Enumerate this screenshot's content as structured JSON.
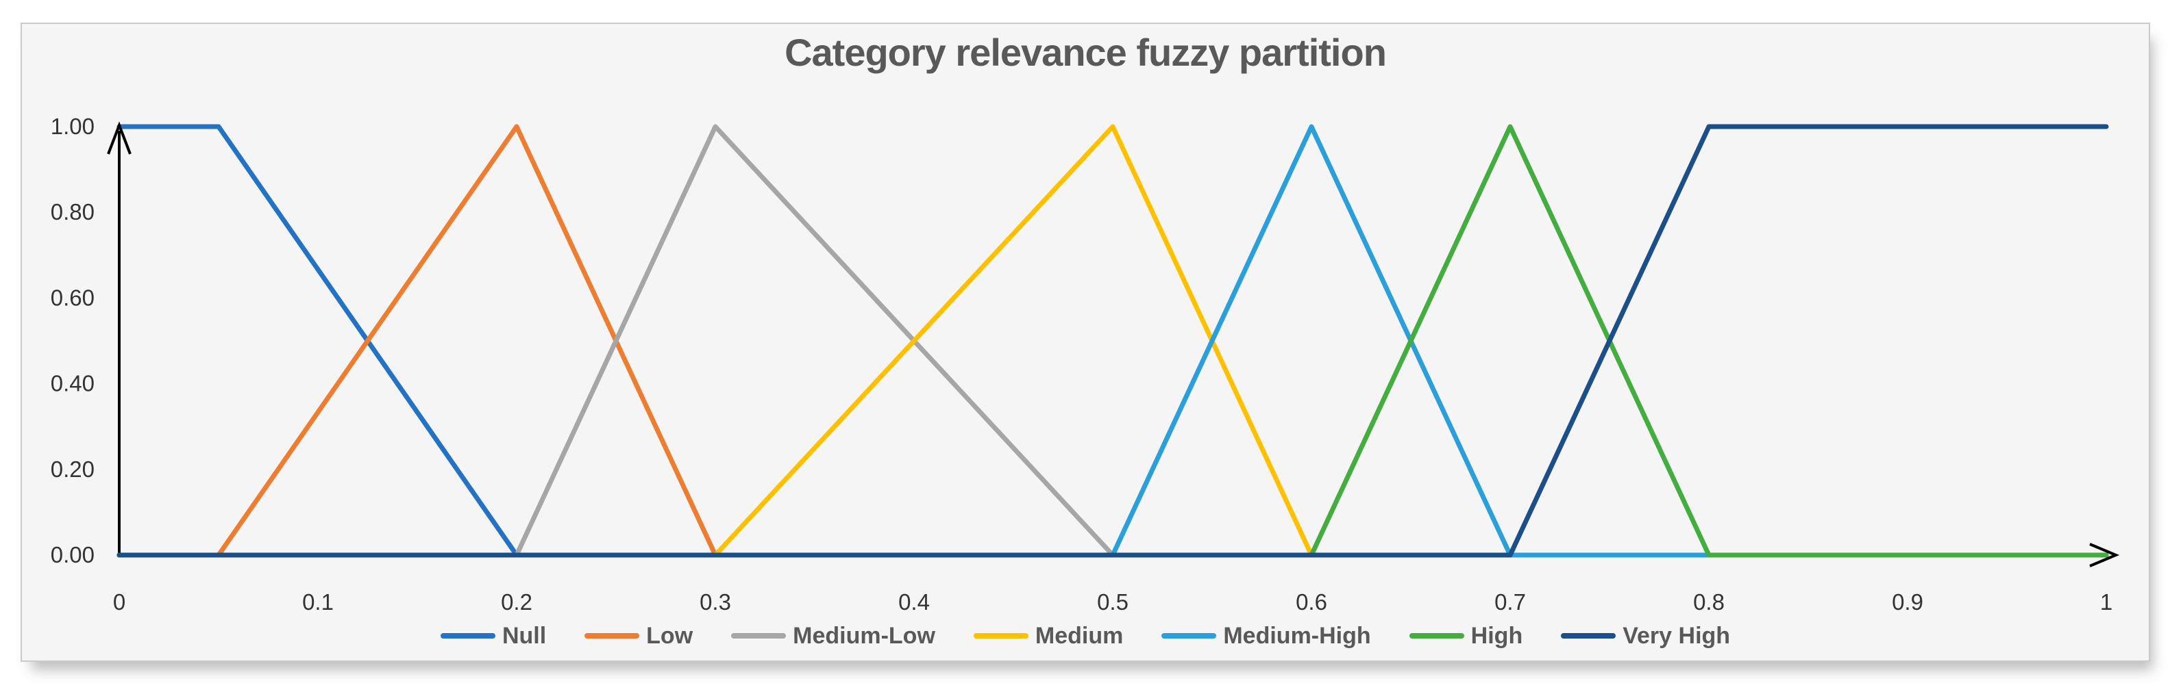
{
  "window": {
    "background": "#ffffff",
    "panel_fill": "#f5f5f6",
    "panel_border": "#c9cacc"
  },
  "chart_data": {
    "type": "line",
    "title": "Category relevance fuzzy partition",
    "title_color": "#595959",
    "xlabel": "",
    "ylabel": "",
    "xlim": [
      0,
      1
    ],
    "ylim": [
      0,
      1
    ],
    "grid": false,
    "legend_position": "bottom",
    "axis_color": "#000000",
    "tick_label_color": "#333333",
    "x_ticks": {
      "values": [
        0,
        0.1,
        0.2,
        0.3,
        0.4,
        0.5,
        0.6,
        0.7,
        0.8,
        0.9,
        1
      ],
      "labels": [
        "0",
        "0.1",
        "0.2",
        "0.3",
        "0.4",
        "0.5",
        "0.6",
        "0.7",
        "0.8",
        "0.9",
        "1"
      ]
    },
    "y_ticks": {
      "values": [
        1,
        0.8,
        0.6,
        0.4,
        0.2,
        0
      ],
      "labels": [
        "1.00",
        "0.80",
        "0.60",
        "0.40",
        "0.20",
        "0.00"
      ]
    },
    "series": [
      {
        "name": "Null",
        "color": "#2472C4",
        "points": [
          [
            0,
            1
          ],
          [
            0.05,
            1
          ],
          [
            0.2,
            0
          ],
          [
            1,
            0
          ]
        ]
      },
      {
        "name": "Low",
        "color": "#ED7D31",
        "points": [
          [
            0,
            0
          ],
          [
            0.05,
            0
          ],
          [
            0.2,
            1
          ],
          [
            0.3,
            0
          ],
          [
            1,
            0
          ]
        ]
      },
      {
        "name": "Medium-Low",
        "color": "#A6A6A6",
        "points": [
          [
            0,
            0
          ],
          [
            0.2,
            0
          ],
          [
            0.3,
            1
          ],
          [
            0.5,
            0
          ],
          [
            1,
            0
          ]
        ]
      },
      {
        "name": "Medium",
        "color": "#FFC000",
        "points": [
          [
            0,
            0
          ],
          [
            0.3,
            0
          ],
          [
            0.5,
            1
          ],
          [
            0.6,
            0
          ],
          [
            1,
            0
          ]
        ]
      },
      {
        "name": "Medium-High",
        "color": "#2B9FD9",
        "points": [
          [
            0,
            0
          ],
          [
            0.5,
            0
          ],
          [
            0.6,
            1
          ],
          [
            0.7,
            0
          ],
          [
            1,
            0
          ]
        ]
      },
      {
        "name": "High",
        "color": "#44AD3F",
        "points": [
          [
            0,
            0
          ],
          [
            0.6,
            0
          ],
          [
            0.7,
            1
          ],
          [
            0.8,
            0
          ],
          [
            1,
            0
          ]
        ]
      },
      {
        "name": "Very High",
        "color": "#1C4F87",
        "points": [
          [
            0,
            0
          ],
          [
            0.7,
            0
          ],
          [
            0.8,
            1
          ],
          [
            1,
            1
          ]
        ]
      }
    ]
  }
}
